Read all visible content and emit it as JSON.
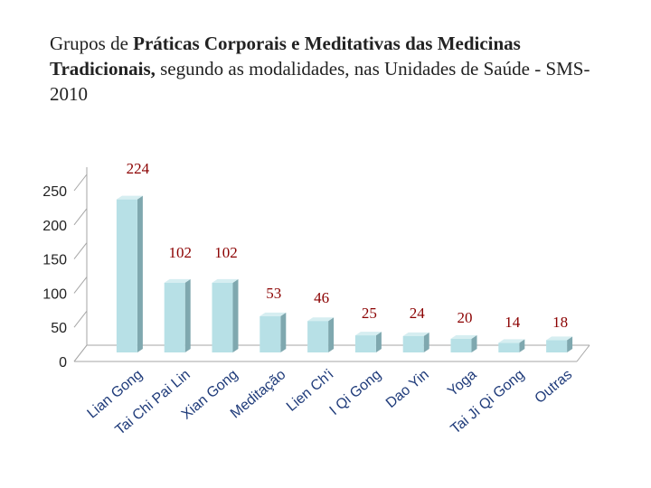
{
  "title": {
    "part1": "Grupos de ",
    "part2": "Práticas Corporais e Meditativas das Medicinas Tradicionais,",
    "part3": " segundo as modalidades, nas Unidades de Saúde - SMS- 2010"
  },
  "colors": {
    "bar_front": "#b7e0e6",
    "bar_side": "#7fa8af",
    "bar_top": "#d6eef1",
    "category_text": "#1f3b7a",
    "data_label": "#8b0000",
    "axis": "#a6a6a6"
  },
  "chart_data": {
    "type": "bar",
    "title": "Grupos de Práticas Corporais e Meditativas das Medicinas Tradicionais, segundo as modalidades, nas Unidades de Saúde - SMS- 2010",
    "categories": [
      "Lian Gong",
      "Tai Chi Pai Lin",
      "Xian Gong",
      "Meditação",
      "Lien Ch'i",
      "I Qi Gong",
      "Dao Yin",
      "Yoga",
      "Tai Ji Qi Gong",
      "Outras"
    ],
    "values": [
      224,
      102,
      102,
      53,
      46,
      25,
      24,
      20,
      14,
      18
    ],
    "data_labels": [
      "224",
      "102",
      "102",
      "53",
      "46",
      "25",
      "24",
      "20",
      "14",
      "18"
    ],
    "yticks": [
      "0",
      "50",
      "100",
      "150",
      "200",
      "250"
    ],
    "ylim": [
      0,
      250
    ],
    "xlabel": "",
    "ylabel": "",
    "grid": false
  }
}
